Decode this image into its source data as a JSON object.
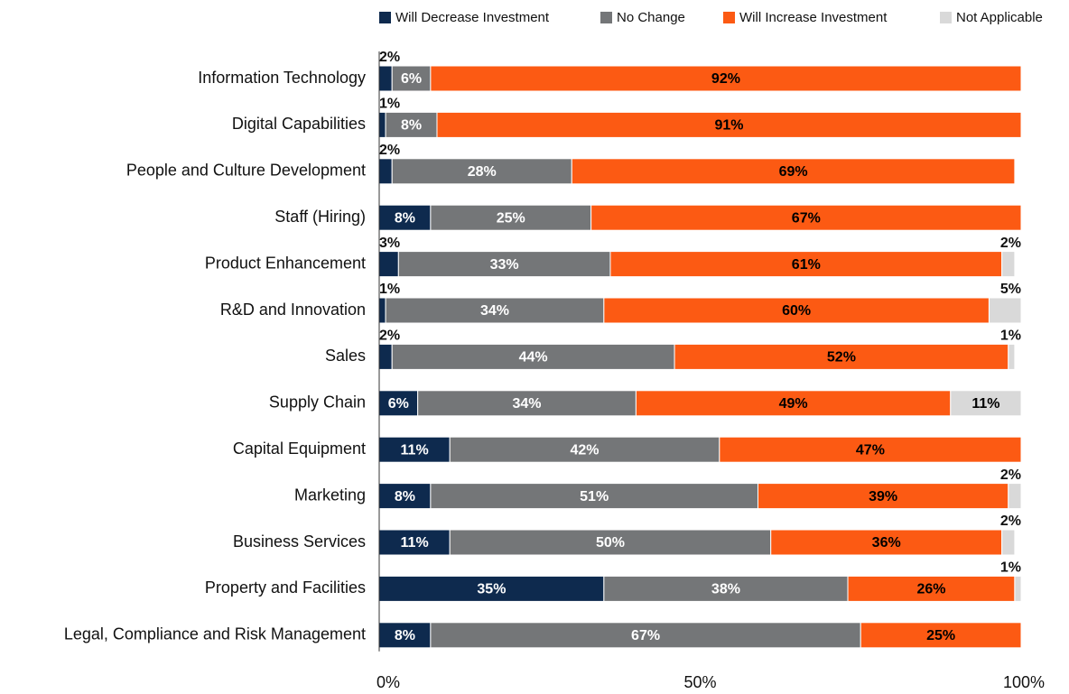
{
  "chart_data": {
    "type": "stacked_bar_horizontal",
    "categories": [
      "Information Technology",
      "Digital Capabilities",
      "People and Culture Development",
      "Staff (Hiring)",
      "Product Enhancement",
      "R&D and Innovation",
      "Sales",
      "Supply Chain",
      "Capital Equipment",
      "Marketing",
      "Business Services",
      "Property and Facilities",
      "Legal, Compliance and Risk Management"
    ],
    "series": [
      {
        "name": "Will Decrease Investment",
        "color": "#0e2a4e",
        "text_color": "#ffffff",
        "values": [
          2,
          1,
          2,
          8,
          3,
          1,
          2,
          6,
          11,
          8,
          11,
          35,
          8
        ],
        "value_labels": [
          "2%",
          "1%",
          "2%",
          "8%",
          "3%",
          "1%",
          "2%",
          "6%",
          "11%",
          "8%",
          "11%",
          "35%",
          "8%"
        ]
      },
      {
        "name": "No Change",
        "color": "#747678",
        "text_color": "#ffffff",
        "values": [
          6,
          8,
          28,
          25,
          33,
          34,
          44,
          34,
          42,
          51,
          50,
          38,
          67
        ],
        "value_labels": [
          "6%",
          "8%",
          "28%",
          "25%",
          "33%",
          "34%",
          "44%",
          "34%",
          "42%",
          "51%",
          "50%",
          "38%",
          "67%"
        ]
      },
      {
        "name": "Will Increase Investment",
        "color": "#fc5a13",
        "text_color": "#000000",
        "values": [
          92,
          91,
          69,
          67,
          61,
          60,
          52,
          49,
          47,
          39,
          36,
          26,
          25
        ],
        "value_labels": [
          "92%",
          "91%",
          "69%",
          "67%",
          "61%",
          "60%",
          "52%",
          "49%",
          "47%",
          "39%",
          "36%",
          "26%",
          "25%"
        ]
      },
      {
        "name": "Not Applicable",
        "color": "#d9d9d9",
        "text_color": "#000000",
        "values": [
          null,
          null,
          null,
          null,
          2,
          5,
          1,
          11,
          null,
          2,
          2,
          1,
          null
        ],
        "value_labels": [
          null,
          null,
          null,
          null,
          "2%",
          "5%",
          "1%",
          "11%",
          null,
          "2%",
          "2%",
          "1%",
          null
        ]
      }
    ],
    "xlim": [
      0,
      100
    ],
    "xticks": [
      {
        "value": 0,
        "label": "0%"
      },
      {
        "value": 50,
        "label": "50%"
      },
      {
        "value": 100,
        "label": "100%"
      }
    ],
    "legend": "top-right"
  }
}
